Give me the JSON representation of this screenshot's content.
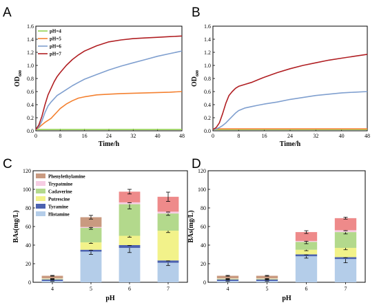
{
  "panel_labels": [
    "A",
    "B",
    "C",
    "D"
  ],
  "colors": {
    "pH4": "#92d050",
    "pH5": "#f4802f",
    "pH6": "#7f9fcf",
    "pH7": "#b01e22",
    "Histamine": "#b4cde9",
    "Tyramine": "#4c62b0",
    "Putrescine": "#f2f28a",
    "Cadaverine": "#b3d98c",
    "Trypatmine": "#f6cde3",
    "Phenylethylamine": "#c99a80",
    "Phenylethylamine_top": "#ee8a8a"
  },
  "chart_data": [
    {
      "id": "A",
      "type": "line",
      "xlabel": "Time/h",
      "ylabel": "OD600",
      "ylabel_main": "OD",
      "ylabel_sub": "600",
      "xlim": [
        0,
        48
      ],
      "ylim": [
        0,
        1.6
      ],
      "xticks": [
        0,
        8,
        16,
        24,
        32,
        40,
        48
      ],
      "yticks": [
        "0.0",
        "0.2",
        "0.4",
        "0.6",
        "0.8",
        "1.0",
        "1.2",
        "1.4",
        "1.6"
      ],
      "legend": "top-left",
      "series": [
        {
          "name": "pH=4",
          "color_key": "pH4",
          "x": [
            0,
            4,
            8,
            16,
            24,
            32,
            40,
            48
          ],
          "y": [
            0.02,
            0.02,
            0.02,
            0.02,
            0.02,
            0.02,
            0.02,
            0.02
          ]
        },
        {
          "name": "pH=5",
          "color_key": "pH5",
          "x": [
            0,
            1,
            2,
            3,
            4,
            5,
            6,
            7,
            8,
            10,
            12,
            14,
            16,
            20,
            24,
            28,
            32,
            36,
            40,
            44,
            48
          ],
          "y": [
            0.02,
            0.05,
            0.09,
            0.13,
            0.16,
            0.19,
            0.24,
            0.29,
            0.34,
            0.41,
            0.46,
            0.5,
            0.52,
            0.55,
            0.56,
            0.57,
            0.575,
            0.58,
            0.585,
            0.59,
            0.6
          ]
        },
        {
          "name": "pH=6",
          "color_key": "pH6",
          "x": [
            0,
            1,
            2,
            3,
            4,
            5,
            6,
            7,
            8,
            10,
            12,
            14,
            16,
            20,
            24,
            28,
            32,
            36,
            40,
            44,
            48
          ],
          "y": [
            0.02,
            0.06,
            0.15,
            0.28,
            0.38,
            0.44,
            0.49,
            0.54,
            0.57,
            0.63,
            0.69,
            0.74,
            0.79,
            0.86,
            0.93,
            0.99,
            1.04,
            1.09,
            1.14,
            1.18,
            1.22
          ]
        },
        {
          "name": "pH=7",
          "color_key": "pH7",
          "x": [
            0,
            1,
            2,
            3,
            4,
            5,
            6,
            7,
            8,
            10,
            12,
            14,
            16,
            20,
            24,
            28,
            32,
            36,
            40,
            44,
            48
          ],
          "y": [
            0.02,
            0.09,
            0.22,
            0.4,
            0.55,
            0.65,
            0.75,
            0.83,
            0.89,
            1.0,
            1.09,
            1.16,
            1.22,
            1.3,
            1.36,
            1.39,
            1.41,
            1.42,
            1.43,
            1.44,
            1.45
          ]
        }
      ]
    },
    {
      "id": "B",
      "type": "line",
      "xlabel": "Time/h",
      "ylabel": "OD600",
      "ylabel_main": "OD",
      "ylabel_sub": "600",
      "xlim": [
        0,
        48
      ],
      "ylim": [
        0,
        1.6
      ],
      "xticks": [
        0,
        8,
        16,
        24,
        32,
        40,
        48
      ],
      "yticks": [
        "0.0",
        "0.2",
        "0.4",
        "0.6",
        "0.8",
        "1.0",
        "1.2",
        "1.4",
        "1.6"
      ],
      "series": [
        {
          "name": "pH=4",
          "color_key": "pH4",
          "x": [
            0,
            4,
            8,
            16,
            24,
            32,
            40,
            48
          ],
          "y": [
            0.02,
            0.02,
            0.02,
            0.02,
            0.02,
            0.02,
            0.02,
            0.02
          ]
        },
        {
          "name": "pH=5",
          "color_key": "pH5",
          "x": [
            0,
            4,
            8,
            16,
            24,
            32,
            40,
            48
          ],
          "y": [
            0.03,
            0.03,
            0.03,
            0.03,
            0.03,
            0.03,
            0.03,
            0.03
          ]
        },
        {
          "name": "pH=6",
          "color_key": "pH6",
          "x": [
            0,
            1,
            2,
            3,
            4,
            5,
            6,
            7,
            8,
            10,
            12,
            14,
            16,
            20,
            24,
            28,
            32,
            36,
            40,
            44,
            48
          ],
          "y": [
            0.02,
            0.03,
            0.05,
            0.08,
            0.12,
            0.17,
            0.22,
            0.27,
            0.31,
            0.35,
            0.37,
            0.39,
            0.41,
            0.44,
            0.48,
            0.51,
            0.54,
            0.56,
            0.58,
            0.59,
            0.6
          ]
        },
        {
          "name": "pH=7",
          "color_key": "pH7",
          "x": [
            0,
            1,
            2,
            3,
            4,
            5,
            6,
            7,
            8,
            10,
            12,
            14,
            16,
            20,
            24,
            28,
            32,
            36,
            40,
            44,
            48
          ],
          "y": [
            0.02,
            0.05,
            0.12,
            0.26,
            0.42,
            0.54,
            0.6,
            0.65,
            0.68,
            0.71,
            0.74,
            0.78,
            0.82,
            0.89,
            0.95,
            1.0,
            1.04,
            1.08,
            1.11,
            1.14,
            1.17
          ]
        }
      ]
    },
    {
      "id": "C",
      "type": "bar",
      "stacked": true,
      "xlabel": "pH",
      "ylabel": "BAs(mg/L)",
      "categories": [
        "4",
        "5",
        "6",
        "7"
      ],
      "ylim": [
        0,
        120
      ],
      "yticks": [
        "0",
        "20",
        "40",
        "60",
        "80",
        "100",
        "120"
      ],
      "legend": "top-left",
      "series": [
        {
          "name": "Histamine",
          "color_key": "Histamine",
          "values": [
            1.5,
            33,
            37,
            21
          ],
          "errors": [
            0.4,
            3,
            5,
            3
          ]
        },
        {
          "name": "Tyramine",
          "color_key": "Tyramine",
          "values": [
            1.5,
            2,
            3,
            2.5
          ],
          "errors": [
            0.3,
            0.5,
            0.5,
            0.5
          ]
        },
        {
          "name": "Putrescine",
          "color_key": "Putrescine",
          "values": [
            0.5,
            8,
            10,
            32
          ],
          "errors": [
            0.2,
            1.2,
            1.5,
            2
          ]
        },
        {
          "name": "Cadaverine",
          "color_key": "Cadaverine",
          "values": [
            0.5,
            15.5,
            34,
            18.5
          ],
          "errors": [
            0.2,
            1.5,
            5,
            2
          ]
        },
        {
          "name": "Trypatmine",
          "color_key": "Trypatmine",
          "values": [
            0.3,
            1,
            2,
            2
          ],
          "errors": [
            0.2,
            0.5,
            0.5,
            0.5
          ]
        },
        {
          "name": "Phenylethylamine",
          "color_key": "Phenylethylamine",
          "values": [
            2.7,
            10.5,
            11.5,
            16
          ],
          "errors": [
            0.4,
            2,
            2.5,
            5
          ]
        }
      ]
    },
    {
      "id": "D",
      "type": "bar",
      "stacked": true,
      "xlabel": "pH",
      "ylabel": "BAs(mg/L)",
      "categories": [
        "4",
        "5",
        "6",
        "7"
      ],
      "ylim": [
        0,
        120
      ],
      "yticks": [
        "0",
        "20",
        "40",
        "60",
        "80",
        "100",
        "120"
      ],
      "series": [
        {
          "name": "Histamine",
          "color_key": "Histamine",
          "values": [
            1.5,
            1.5,
            28,
            25
          ],
          "errors": [
            0.4,
            0.4,
            2,
            4
          ]
        },
        {
          "name": "Tyramine",
          "color_key": "Tyramine",
          "values": [
            1.5,
            1.5,
            2,
            2
          ],
          "errors": [
            0.3,
            0.3,
            0.5,
            0.5
          ]
        },
        {
          "name": "Putrescine",
          "color_key": "Putrescine",
          "values": [
            0.5,
            0.5,
            5,
            10
          ],
          "errors": [
            0.2,
            0.2,
            1,
            2
          ]
        },
        {
          "name": "Cadaverine",
          "color_key": "Cadaverine",
          "values": [
            0.5,
            0.5,
            8.5,
            17
          ],
          "errors": [
            0.2,
            0.2,
            2,
            2
          ]
        },
        {
          "name": "Trypatmine",
          "color_key": "Trypatmine",
          "values": [
            0.3,
            0.3,
            1,
            2
          ],
          "errors": [
            0.2,
            0.2,
            0.5,
            0.5
          ]
        },
        {
          "name": "Phenylethylamine",
          "color_key": "Phenylethylamine",
          "values": [
            2.7,
            2.7,
            9.5,
            13
          ],
          "errors": [
            0.4,
            0.4,
            1.5,
            1
          ]
        }
      ]
    }
  ]
}
